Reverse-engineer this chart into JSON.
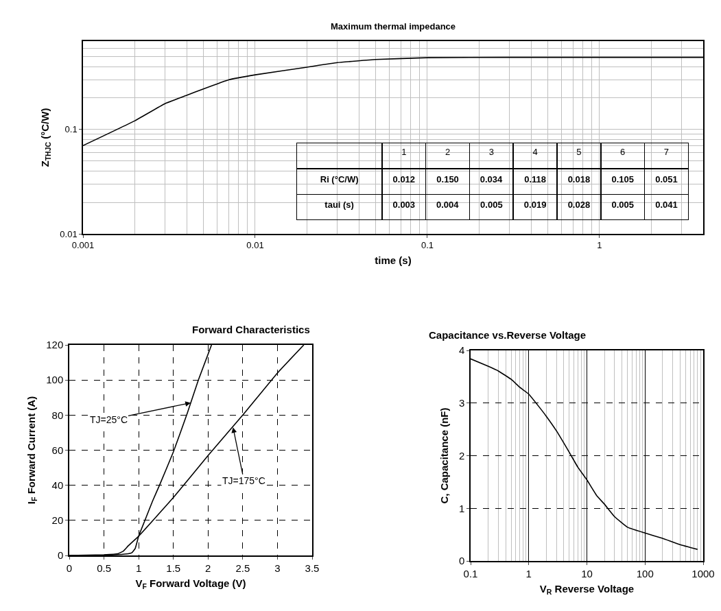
{
  "chart_data": [
    {
      "type": "line",
      "title": "Maximum thermal impedance",
      "xlabel": "time (s)",
      "ylabel": "Z$_{THJC}$ (°C/W)",
      "log": "xy",
      "grid": true,
      "x": [
        0.001,
        0.002,
        0.003,
        0.004,
        0.005,
        0.007,
        0.01,
        0.02,
        0.03,
        0.05,
        0.1,
        0.3,
        1,
        4
      ],
      "series": [
        {
          "color": "#000000",
          "values": [
            0.07,
            0.121,
            0.177,
            0.212,
            0.244,
            0.298,
            0.333,
            0.394,
            0.436,
            0.467,
            0.486,
            0.49,
            0.49,
            0.49
          ]
        }
      ],
      "xlim": [
        0.001,
        4
      ],
      "ylim": [
        0.01,
        0.7
      ],
      "xticks": [
        0.001,
        0.01,
        0.1,
        1
      ],
      "yticks": [
        0.01,
        0.1
      ],
      "annotations": [
        "1",
        "2",
        "3",
        "4",
        "5",
        "6",
        "7",
        "Ri (°C/W)",
        "0.012",
        "0.150",
        "0.034",
        "0.118",
        "0.018",
        "0.105",
        "0.051",
        "taui (s)",
        "0.003",
        "0.004",
        "0.005",
        "0.019",
        "0.028",
        "0.005",
        "0.041"
      ]
    },
    {
      "type": "line",
      "title": "Forward Characteristics",
      "xlabel": "V$_{F}$ Forward Voltage (V)",
      "ylabel": "I$_{F}$ Forward Current (A)",
      "grid": true,
      "series": [
        {
          "color": "#000000",
          "x": [
            0,
            0.5,
            0.7,
            0.85,
            0.9,
            0.95,
            1.0,
            1.1,
            1.2,
            1.3,
            1.5,
            1.7,
            1.86,
            2.05
          ],
          "values": [
            0,
            0.2,
            0.5,
            1,
            1.5,
            4,
            11,
            21,
            31,
            40,
            59,
            81,
            100,
            120
          ]
        },
        {
          "color": "#000000",
          "x": [
            0,
            0.5,
            0.7,
            0.78,
            0.85,
            1.0,
            1.5,
            2.0,
            2.5,
            3.0,
            3.38
          ],
          "values": [
            0,
            0.4,
            1,
            2.5,
            5.5,
            11,
            33,
            57,
            80,
            104,
            120
          ]
        }
      ],
      "xlim": [
        0,
        3.5
      ],
      "ylim": [
        0,
        120
      ],
      "xticks": [
        0,
        0.5,
        1,
        1.5,
        2,
        2.5,
        3,
        3.5
      ],
      "yticks": [
        0,
        20,
        40,
        60,
        80,
        100,
        120
      ],
      "annotations": [
        {
          "text": "TJ=25°C",
          "x": 1.75,
          "y": 87
        },
        {
          "text": "TJ=175°C",
          "x": 2.36,
          "y": 73
        }
      ]
    },
    {
      "type": "line",
      "title": "Capacitance vs.Reverse Voltage",
      "xlabel": "V$_{R}$ Reverse Voltage",
      "ylabel": "C, Capacitance (nF)",
      "log": "x",
      "grid": true,
      "x": [
        0.1,
        0.2,
        0.3,
        0.5,
        0.7,
        1,
        1.5,
        2,
        3,
        5,
        7,
        10,
        15,
        20,
        30,
        50,
        100,
        200,
        400,
        800
      ],
      "series": [
        {
          "color": "#000000",
          "values": [
            3.84,
            3.7,
            3.61,
            3.45,
            3.3,
            3.17,
            2.93,
            2.75,
            2.47,
            2.06,
            1.78,
            1.54,
            1.23,
            1.08,
            0.84,
            0.64,
            0.53,
            0.43,
            0.31,
            0.22
          ]
        }
      ],
      "xlim": [
        0.1,
        1000
      ],
      "ylim": [
        0,
        4
      ],
      "xticks": [
        0.1,
        1,
        10,
        100,
        1000
      ],
      "yticks": [
        0,
        1,
        2,
        3,
        4
      ]
    }
  ]
}
